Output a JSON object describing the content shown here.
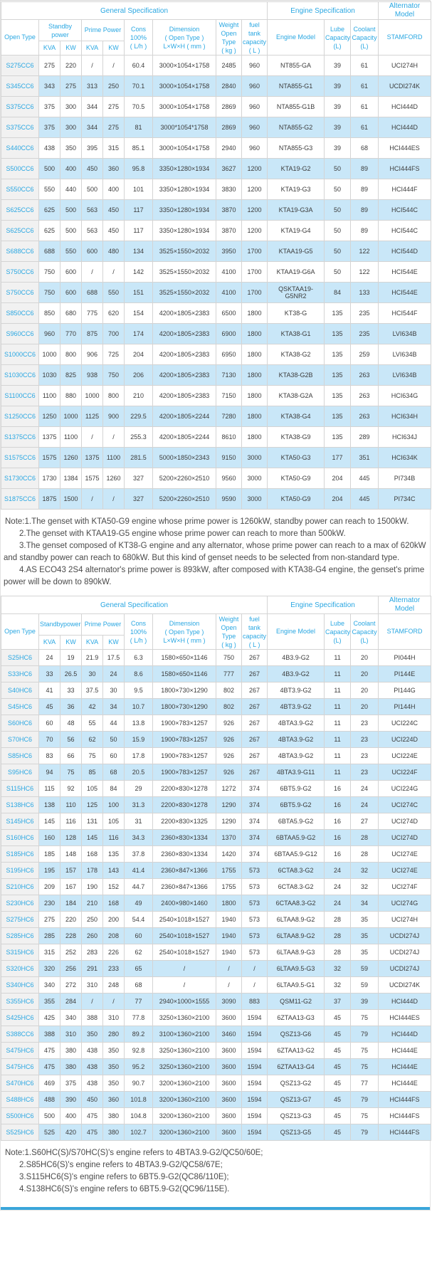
{
  "colors": {
    "accent_blue": "#2aa7e2",
    "row_alt_blue": "#c9e7f8",
    "first_col_gray": "#f1f1f1",
    "border_gray": "#d4d4d4"
  },
  "headers": {
    "general": "General Specification",
    "engine_spec": "Engine Specification",
    "alternator_l1": "Alternator",
    "alternator_l2": "Model",
    "open_type": "Open Type",
    "standby_t1_l1": "Standby",
    "standby_t1_l2": "power",
    "standby_t2": "Standbypower",
    "prime_power": "Prime Power",
    "kva": "KVA",
    "kw": "KW",
    "cons_l1": "Cons",
    "cons_l2": "100%",
    "cons_l3": "( L/h )",
    "dim_l1": "Dimension",
    "dim_l2": "( Open Type )",
    "dim_l3": "L×W×H ( mm )",
    "weight_l1": "Weight",
    "weight_l2": "Open Type",
    "weight_l3": "( kg )",
    "fuel_l1": "fuel tank",
    "fuel_l2": "capacity",
    "fuel_l3": "( L )",
    "engine_model": "Engine Model",
    "lube_l1": "Lube",
    "lube_l2": "Capacity",
    "lube_l3": "(L)",
    "coolant_l1": "Coolant",
    "coolant_l2": "Capacity",
    "coolant_l3": "(L)",
    "stamford": "STAMFORD"
  },
  "table1": {
    "rows": [
      [
        "S275CC6",
        "275",
        "220",
        "/",
        "/",
        "60.4",
        "3000×1054×1758",
        "2485",
        "960",
        "NT855-GA",
        "39",
        "61",
        "UCI274H"
      ],
      [
        "S345CC6",
        "343",
        "275",
        "313",
        "250",
        "70.1",
        "3000×1054×1758",
        "2840",
        "960",
        "NTA855-G1",
        "39",
        "61",
        "UCDI274K"
      ],
      [
        "S375CC6",
        "375",
        "300",
        "344",
        "275",
        "70.5",
        "3000×1054×1758",
        "2869",
        "960",
        "NTA855-G1B",
        "39",
        "61",
        "HCI444D"
      ],
      [
        "S375CC6",
        "375",
        "300",
        "344",
        "275",
        "81",
        "3000*1054*1758",
        "2869",
        "960",
        "NTA855-G2",
        "39",
        "61",
        "HCI444D"
      ],
      [
        "S440CC6",
        "438",
        "350",
        "395",
        "315",
        "85.1",
        "3000×1054×1758",
        "2940",
        "960",
        "NTA855-G3",
        "39",
        "68",
        "HCI444ES"
      ],
      [
        "S500CC6",
        "500",
        "400",
        "450",
        "360",
        "95.8",
        "3350×1280×1934",
        "3627",
        "1200",
        "KTA19-G2",
        "50",
        "89",
        "HCI444FS"
      ],
      [
        "S550CC6",
        "550",
        "440",
        "500",
        "400",
        "101",
        "3350×1280×1934",
        "3830",
        "1200",
        "KTA19-G3",
        "50",
        "89",
        "HCI444F"
      ],
      [
        "S625CC6",
        "625",
        "500",
        "563",
        "450",
        "117",
        "3350×1280×1934",
        "3870",
        "1200",
        "KTA19-G3A",
        "50",
        "89",
        "HCI544C"
      ],
      [
        "S625CC6",
        "625",
        "500",
        "563",
        "450",
        "117",
        "3350×1280×1934",
        "3870",
        "1200",
        "KTA19-G4",
        "50",
        "89",
        "HCI544C"
      ],
      [
        "S688CC6",
        "688",
        "550",
        "600",
        "480",
        "134",
        "3525×1550×2032",
        "3950",
        "1700",
        "KTAA19-G5",
        "50",
        "122",
        "HCI544D"
      ],
      [
        "S750CC6",
        "750",
        "600",
        "/",
        "/",
        "142",
        "3525×1550×2032",
        "4100",
        "1700",
        "KTAA19-G6A",
        "50",
        "122",
        "HCI544E"
      ],
      [
        "S750CC6",
        "750",
        "600",
        "688",
        "550",
        "151",
        "3525×1550×2032",
        "4100",
        "1700",
        "QSKTAA19-G5NR2",
        "84",
        "133",
        "HCI544E"
      ],
      [
        "S850CC6",
        "850",
        "680",
        "775",
        "620",
        "154",
        "4200×1805×2383",
        "6500",
        "1800",
        "KT38-G",
        "135",
        "235",
        "HCI544F"
      ],
      [
        "S960CC6",
        "960",
        "770",
        "875",
        "700",
        "174",
        "4200×1805×2383",
        "6900",
        "1800",
        "KTA38-G1",
        "135",
        "235",
        "LVI634B"
      ],
      [
        "S1000CC6",
        "1000",
        "800",
        "906",
        "725",
        "204",
        "4200×1805×2383",
        "6950",
        "1800",
        "KTA38-G2",
        "135",
        "259",
        "LVI634B"
      ],
      [
        "S1030CC6",
        "1030",
        "825",
        "938",
        "750",
        "206",
        "4200×1805×2383",
        "7130",
        "1800",
        "KTA38-G2B",
        "135",
        "263",
        "LVI634B"
      ],
      [
        "S1100CC6",
        "1100",
        "880",
        "1000",
        "800",
        "210",
        "4200×1805×2383",
        "7150",
        "1800",
        "KTA38-G2A",
        "135",
        "263",
        "HCI634G"
      ],
      [
        "S1250CC6",
        "1250",
        "1000",
        "1125",
        "900",
        "229.5",
        "4200×1805×2244",
        "7280",
        "1800",
        "KTA38-G4",
        "135",
        "263",
        "HCI634H"
      ],
      [
        "S1375CC6",
        "1375",
        "1100",
        "/",
        "/",
        "255.3",
        "4200×1805×2244",
        "8610",
        "1800",
        "KTA38-G9",
        "135",
        "289",
        "HCI634J"
      ],
      [
        "S1575CC6",
        "1575",
        "1260",
        "1375",
        "1100",
        "281.5",
        "5000×1850×2343",
        "9150",
        "3000",
        "KTA50-G3",
        "177",
        "351",
        "HCI634K"
      ],
      [
        "S1730CC6",
        "1730",
        "1384",
        "1575",
        "1260",
        "327",
        "5200×2260×2510",
        "9560",
        "3000",
        "KTA50-G9",
        "204",
        "445",
        "PI734B"
      ],
      [
        "S1875CC6",
        "1875",
        "1500",
        "/",
        "/",
        "327",
        "5200×2260×2510",
        "9590",
        "3000",
        "KTA50-G9",
        "204",
        "445",
        "PI734C"
      ]
    ]
  },
  "notes1": [
    "Note:1.The genset with KTA50-G9 engine whose prime power is 1260kW, standby power can reach to 1500kW.",
    "2.The genset with KTAA19-G5 engine whose prime power can reach to more than 500kW.",
    "3.The genset composed of KT38-G engine and any alternator, whose prime power can reach to a max of 620kW and standby power can reach to 680kW. But this kind of genset needs to be selected from non-standard type.",
    "4.AS ECO43 2S4 alternator's prime power is 893kW, after composed with KTA38-G4 engine, the genset's prime power will be down to 890kW."
  ],
  "table2": {
    "rows": [
      [
        "S25HC6",
        "24",
        "19",
        "21.9",
        "17.5",
        "6.3",
        "1580×650×1146",
        "750",
        "267",
        "4B3.9-G2",
        "11",
        "20",
        "PI044H"
      ],
      [
        "S33HC6",
        "33",
        "26.5",
        "30",
        "24",
        "8.6",
        "1580×650×1146",
        "777",
        "267",
        "4B3.9-G2",
        "11",
        "20",
        "PI144E"
      ],
      [
        "S40HC6",
        "41",
        "33",
        "37.5",
        "30",
        "9.5",
        "1800×730×1290",
        "802",
        "267",
        "4BT3.9-G2",
        "11",
        "20",
        "PI144G"
      ],
      [
        "S45HC6",
        "45",
        "36",
        "42",
        "34",
        "10.7",
        "1800×730×1290",
        "802",
        "267",
        "4BT3.9-G2",
        "11",
        "20",
        "PI144H"
      ],
      [
        "S60HC6",
        "60",
        "48",
        "55",
        "44",
        "13.8",
        "1900×783×1257",
        "926",
        "267",
        "4BTA3.9-G2",
        "11",
        "23",
        "UCI224C"
      ],
      [
        "S70HC6",
        "70",
        "56",
        "62",
        "50",
        "15.9",
        "1900×783×1257",
        "926",
        "267",
        "4BTA3.9-G2",
        "11",
        "23",
        "UCI224D"
      ],
      [
        "S85HC6",
        "83",
        "66",
        "75",
        "60",
        "17.8",
        "1900×783×1257",
        "926",
        "267",
        "4BTA3.9-G2",
        "11",
        "23",
        "UCI224E"
      ],
      [
        "S95HC6",
        "94",
        "75",
        "85",
        "68",
        "20.5",
        "1900×783×1257",
        "926",
        "267",
        "4BTA3.9-G11",
        "11",
        "23",
        "UCI224F"
      ],
      [
        "S115HC6",
        "115",
        "92",
        "105",
        "84",
        "29",
        "2200×830×1278",
        "1272",
        "374",
        "6BT5.9-G2",
        "16",
        "24",
        "UCI224G"
      ],
      [
        "S138HC6",
        "138",
        "110",
        "125",
        "100",
        "31.3",
        "2200×830×1278",
        "1290",
        "374",
        "6BT5.9-G2",
        "16",
        "24",
        "UCI274C"
      ],
      [
        "S145HC6",
        "145",
        "116",
        "131",
        "105",
        "31",
        "2200×830×1325",
        "1290",
        "374",
        "6BTA5.9-G2",
        "16",
        "27",
        "UCI274D"
      ],
      [
        "S160HC6",
        "160",
        "128",
        "145",
        "116",
        "34.3",
        "2360×830×1334",
        "1370",
        "374",
        "6BTAA5.9-G2",
        "16",
        "28",
        "UCI274D"
      ],
      [
        "S185HC6",
        "185",
        "148",
        "168",
        "135",
        "37.8",
        "2360×830×1334",
        "1420",
        "374",
        "6BTAA5.9-G12",
        "16",
        "28",
        "UCI274E"
      ],
      [
        "S195HC6",
        "195",
        "157",
        "178",
        "143",
        "41.4",
        "2360×847×1366",
        "1755",
        "573",
        "6CTA8.3-G2",
        "24",
        "32",
        "UCI274E"
      ],
      [
        "S210HC6",
        "209",
        "167",
        "190",
        "152",
        "44.7",
        "2360×847×1366",
        "1755",
        "573",
        "6CTA8.3-G2",
        "24",
        "32",
        "UCI274F"
      ],
      [
        "S230HC6",
        "230",
        "184",
        "210",
        "168",
        "49",
        "2400×980×1460",
        "1800",
        "573",
        "6CTAA8.3-G2",
        "24",
        "34",
        "UCI274G"
      ],
      [
        "S275HC6",
        "275",
        "220",
        "250",
        "200",
        "54.4",
        "2540×1018×1527",
        "1940",
        "573",
        "6LTAA8.9-G2",
        "28",
        "35",
        "UCI274H"
      ],
      [
        "S285HC6",
        "285",
        "228",
        "260",
        "208",
        "60",
        "2540×1018×1527",
        "1940",
        "573",
        "6LTAA8.9-G2",
        "28",
        "35",
        "UCDI274J"
      ],
      [
        "S315HC6",
        "315",
        "252",
        "283",
        "226",
        "62",
        "2540×1018×1527",
        "1940",
        "573",
        "6LTAA8.9-G3",
        "28",
        "35",
        "UCDI274J"
      ],
      [
        "S320HC6",
        "320",
        "256",
        "291",
        "233",
        "65",
        "/",
        "/",
        "/",
        "6LTAA9.5-G3",
        "32",
        "59",
        "UCDI274J"
      ],
      [
        "S340HC6",
        "340",
        "272",
        "310",
        "248",
        "68",
        "/",
        "/",
        "/",
        "6LTAA9.5-G1",
        "32",
        "59",
        "UCDI274K"
      ],
      [
        "S355HC6",
        "355",
        "284",
        "/",
        "/",
        "77",
        "2940×1000×1555",
        "3090",
        "883",
        "QSM11-G2",
        "37",
        "39",
        "HCI444D"
      ],
      [
        "S425HC6",
        "425",
        "340",
        "388",
        "310",
        "77.8",
        "3250×1360×2100",
        "3600",
        "1594",
        "6ZTAA13-G3",
        "45",
        "75",
        "HCI444ES"
      ],
      [
        "S388CC6",
        "388",
        "310",
        "350",
        "280",
        "89.2",
        "3100×1360×2100",
        "3460",
        "1594",
        "QSZ13-G6",
        "45",
        "79",
        "HCI444D"
      ],
      [
        "S475HC6",
        "475",
        "380",
        "438",
        "350",
        "92.8",
        "3250×1360×2100",
        "3600",
        "1594",
        "6ZTAA13-G2",
        "45",
        "75",
        "HCI444E"
      ],
      [
        "S475HC6",
        "475",
        "380",
        "438",
        "350",
        "95.2",
        "3250×1360×2100",
        "3600",
        "1594",
        "6ZTAA13-G4",
        "45",
        "75",
        "HCI444E"
      ],
      [
        "S470HC6",
        "469",
        "375",
        "438",
        "350",
        "90.7",
        "3200×1360×2100",
        "3600",
        "1594",
        "QSZ13-G2",
        "45",
        "77",
        "HCI444E"
      ],
      [
        "S488HC6",
        "488",
        "390",
        "450",
        "360",
        "101.8",
        "3200×1360×2100",
        "3600",
        "1594",
        "QSZ13-G7",
        "45",
        "79",
        "HCI444FS"
      ],
      [
        "S500HC6",
        "500",
        "400",
        "475",
        "380",
        "104.8",
        "3200×1360×2100",
        "3600",
        "1594",
        "QSZ13-G3",
        "45",
        "75",
        "HCI444FS"
      ],
      [
        "S525HC6",
        "525",
        "420",
        "475",
        "380",
        "102.7",
        "3200×1360×2100",
        "3600",
        "1594",
        "QSZ13-G5",
        "45",
        "79",
        "HCI444FS"
      ]
    ]
  },
  "notes2": [
    "Note:1.S60HC(S)/S70HC(S)'s engine refers to 4BTA3.9-G2/QC50/60E;",
    "2.S85HC6(S)'s engine refers to 4BTA3.9-G2/QC58/67E;",
    "3.S115HC6(S)'s engine refers to 6BT5.9-G2(QC86/110E);",
    "4.S138HC6(S)'s engine refers to 6BT5.9-G2(QC96/115E)."
  ]
}
